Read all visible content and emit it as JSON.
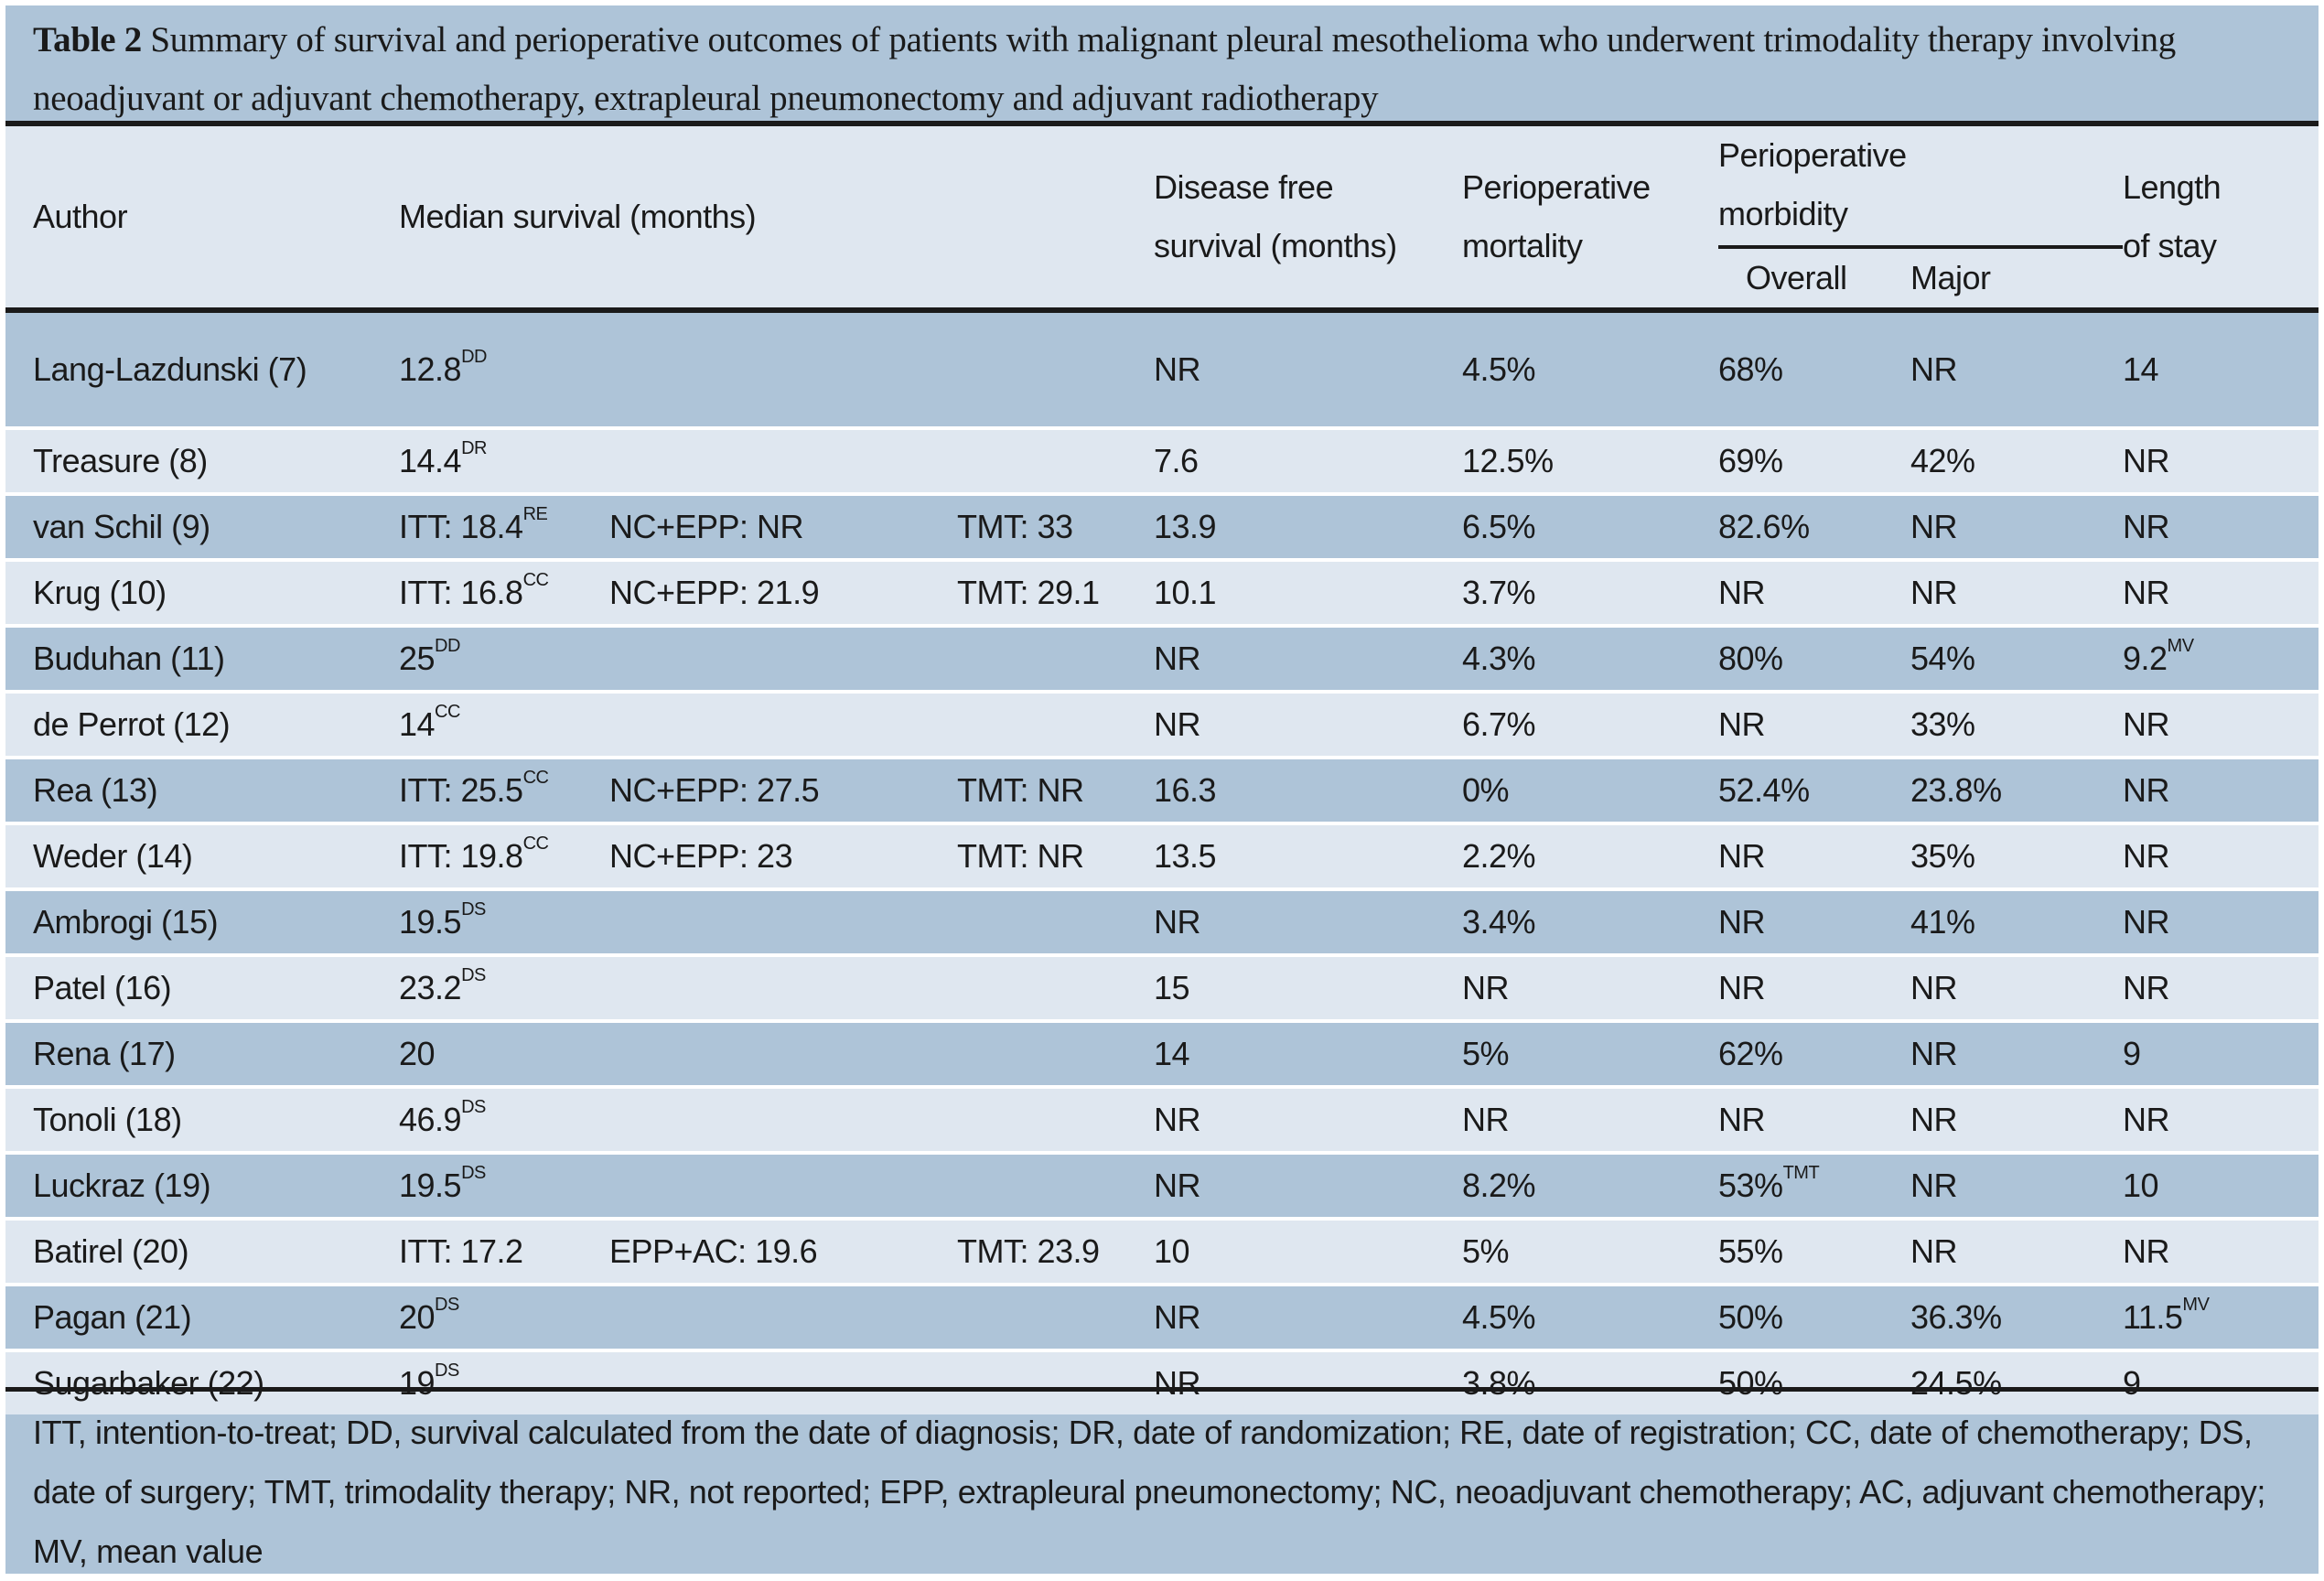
{
  "caption": {
    "label": "Table 2",
    "text": "Summary of survival and perioperative outcomes of patients with malignant pleural mesothelioma who underwent trimodality therapy involving neoadjuvant or adjuvant chemotherapy, extrapleural pneumonectomy and adjuvant radiotherapy"
  },
  "headers": {
    "author": "Author",
    "median": "Median survival (months)",
    "dfs_1": "Disease free",
    "dfs_2": "survival (months)",
    "mort_1": "Perioperative",
    "mort_2": "mortality",
    "morb_1": "Perioperative",
    "morb_2": "morbidity",
    "overall": "Overall",
    "major": "Major",
    "los_1": "Length",
    "los_2": "of stay"
  },
  "rows": [
    {
      "author": "Lang-Lazdunski (7)",
      "m1": "12.8",
      "m1s": "DD",
      "m2": "",
      "m3": "",
      "dfs": "NR",
      "mort": "4.5%",
      "overall": "68%",
      "overall_s": "",
      "major": "NR",
      "los": "14",
      "los_s": ""
    },
    {
      "author": "Treasure (8)",
      "m1": "14.4",
      "m1s": "DR",
      "m2": "",
      "m3": "",
      "dfs": "7.6",
      "mort": "12.5%",
      "overall": "69%",
      "overall_s": "",
      "major": "42%",
      "los": "NR",
      "los_s": ""
    },
    {
      "author": "van Schil (9)",
      "m1": "ITT: 18.4",
      "m1s": "RE",
      "m2": "NC+EPP: NR",
      "m3": "TMT: 33",
      "dfs": "13.9",
      "mort": "6.5%",
      "overall": "82.6%",
      "overall_s": "",
      "major": "NR",
      "los": "NR",
      "los_s": ""
    },
    {
      "author": "Krug (10)",
      "m1": "ITT: 16.8",
      "m1s": "CC",
      "m2": "NC+EPP: 21.9",
      "m3": "TMT: 29.1",
      "dfs": "10.1",
      "mort": "3.7%",
      "overall": "NR",
      "overall_s": "",
      "major": "NR",
      "los": "NR",
      "los_s": ""
    },
    {
      "author": "Buduhan (11)",
      "m1": "25",
      "m1s": "DD",
      "m2": "",
      "m3": "",
      "dfs": "NR",
      "mort": "4.3%",
      "overall": "80%",
      "overall_s": "",
      "major": "54%",
      "los": "9.2",
      "los_s": "MV"
    },
    {
      "author": "de Perrot (12)",
      "m1": "14",
      "m1s": "CC",
      "m2": "",
      "m3": "",
      "dfs": "NR",
      "mort": "6.7%",
      "overall": "NR",
      "overall_s": "",
      "major": "33%",
      "los": "NR",
      "los_s": ""
    },
    {
      "author": "Rea (13)",
      "m1": "ITT: 25.5",
      "m1s": "CC",
      "m2": "NC+EPP: 27.5",
      "m3": "TMT: NR",
      "dfs": "16.3",
      "mort": "0%",
      "overall": "52.4%",
      "overall_s": "",
      "major": "23.8%",
      "los": "NR",
      "los_s": ""
    },
    {
      "author": "Weder (14)",
      "m1": "ITT: 19.8",
      "m1s": "CC",
      "m2": "NC+EPP: 23",
      "m3": "TMT: NR",
      "dfs": "13.5",
      "mort": "2.2%",
      "overall": "NR",
      "overall_s": "",
      "major": "35%",
      "los": "NR",
      "los_s": ""
    },
    {
      "author": "Ambrogi (15)",
      "m1": "19.5",
      "m1s": "DS",
      "m2": "",
      "m3": "",
      "dfs": "NR",
      "mort": "3.4%",
      "overall": "NR",
      "overall_s": "",
      "major": "41%",
      "los": "NR",
      "los_s": ""
    },
    {
      "author": "Patel (16)",
      "m1": "23.2",
      "m1s": "DS",
      "m2": "",
      "m3": "",
      "dfs": "15",
      "mort": "NR",
      "overall": "NR",
      "overall_s": "",
      "major": "NR",
      "los": "NR",
      "los_s": ""
    },
    {
      "author": "Rena (17)",
      "m1": "20",
      "m1s": "",
      "m2": "",
      "m3": "",
      "dfs": "14",
      "mort": "5%",
      "overall": "62%",
      "overall_s": "",
      "major": "NR",
      "los": "9",
      "los_s": ""
    },
    {
      "author": "Tonoli (18)",
      "m1": "46.9",
      "m1s": "DS",
      "m2": "",
      "m3": "",
      "dfs": "NR",
      "mort": "NR",
      "overall": "NR",
      "overall_s": "",
      "major": "NR",
      "los": "NR",
      "los_s": ""
    },
    {
      "author": "Luckraz (19)",
      "m1": "19.5",
      "m1s": "DS",
      "m2": "",
      "m3": "",
      "dfs": "NR",
      "mort": "8.2%",
      "overall": "53%",
      "overall_s": "TMT",
      "major": "NR",
      "los": "10",
      "los_s": ""
    },
    {
      "author": "Batirel (20)",
      "m1": "ITT: 17.2",
      "m1s": "",
      "m2": "EPP+AC: 19.6",
      "m3": "TMT: 23.9",
      "dfs": "10",
      "mort": "5%",
      "overall": "55%",
      "overall_s": "",
      "major": "NR",
      "los": "NR",
      "los_s": ""
    },
    {
      "author": "Pagan (21)",
      "m1": "20",
      "m1s": "DS",
      "m2": "",
      "m3": "",
      "dfs": "NR",
      "mort": "4.5%",
      "overall": "50%",
      "overall_s": "",
      "major": "36.3%",
      "los": "11.5",
      "los_s": "MV"
    },
    {
      "author": "Sugarbaker (22)",
      "m1": "19",
      "m1s": "DS",
      "m2": "",
      "m3": "",
      "dfs": "NR",
      "mort": "3.8%",
      "overall": "50%",
      "overall_s": "",
      "major": "24.5%",
      "los": "9",
      "los_s": ""
    }
  ],
  "footer": "ITT, intention-to-treat; DD, survival calculated from the date of diagnosis; DR, date of randomization; RE, date of registration; CC, date of chemotherapy; DS, date of surgery; TMT, trimodality therapy; NR, not reported; EPP, extrapleural pneumonectomy; NC, neoadjuvant chemotherapy; AC, adjuvant chemotherapy; MV, mean value"
}
